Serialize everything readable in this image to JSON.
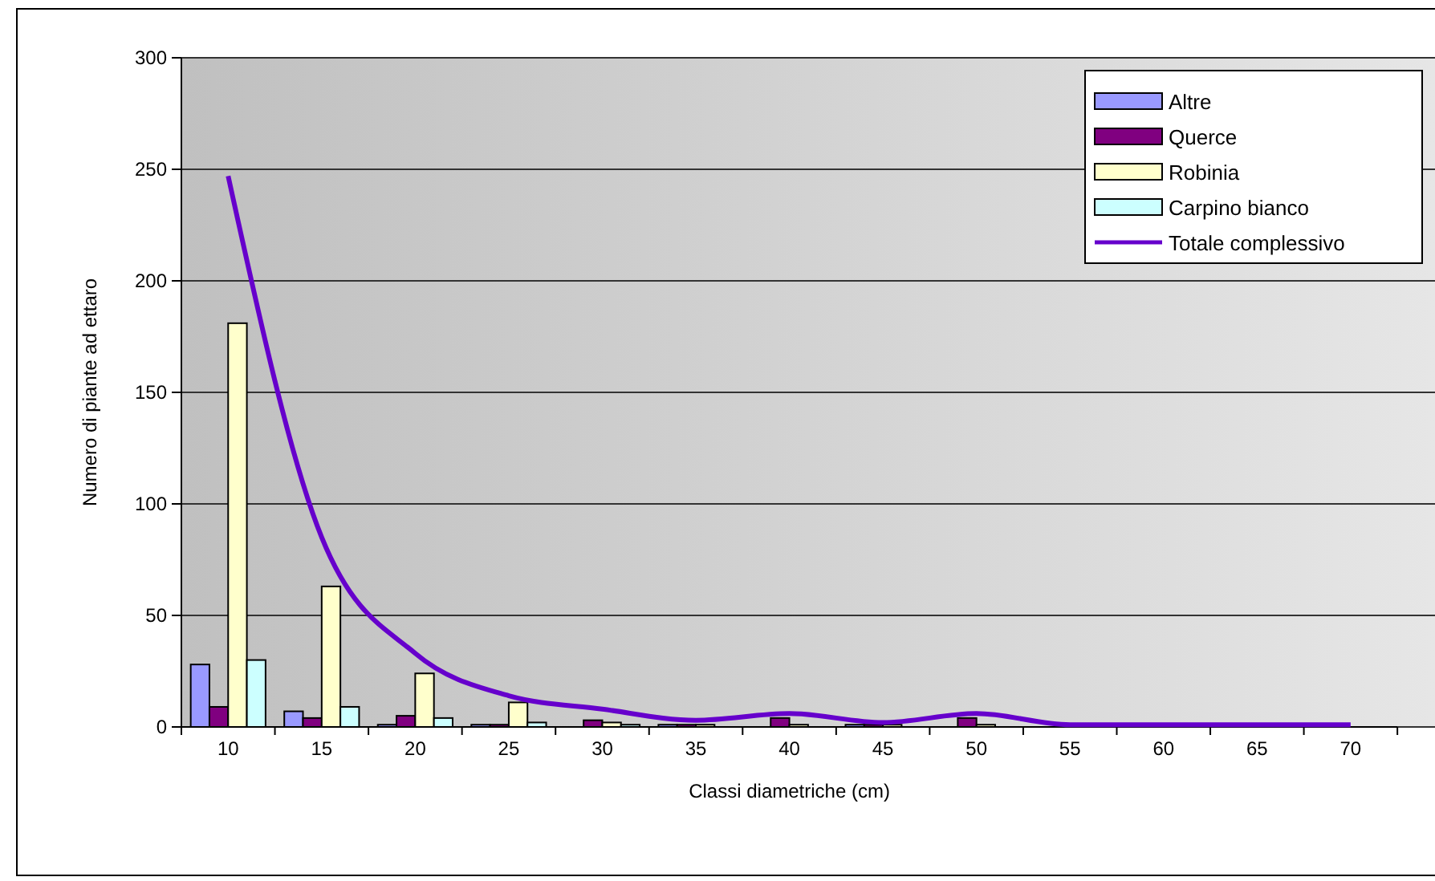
{
  "chart_data": {
    "type": "bar",
    "xlabel": "Classi diametriche (cm)",
    "ylabel": "Numero di piante ad ettaro",
    "categories": [
      "10",
      "15",
      "20",
      "25",
      "30",
      "35",
      "40",
      "45",
      "50",
      "55",
      "60",
      "65",
      "70"
    ],
    "series": [
      {
        "name": "Altre",
        "color": "#9999ff",
        "values": [
          28,
          7,
          1,
          1,
          0,
          1,
          0,
          1,
          0,
          0,
          0,
          0,
          0
        ]
      },
      {
        "name": "Querce",
        "color": "#800080",
        "values": [
          9,
          4,
          5,
          1,
          3,
          1,
          4,
          1,
          4,
          0,
          0,
          0,
          0
        ]
      },
      {
        "name": "Robinia",
        "color": "#ffffcc",
        "values": [
          181,
          63,
          24,
          11,
          2,
          1,
          1,
          1,
          1,
          0,
          0,
          0,
          0
        ]
      },
      {
        "name": "Carpino bianco",
        "color": "#ccffff",
        "values": [
          30,
          9,
          4,
          2,
          1,
          0,
          0,
          0,
          0,
          0,
          0,
          0,
          0
        ]
      },
      {
        "name": "Totale complessivo",
        "type": "line",
        "color": "#6600cc",
        "values": [
          247,
          85,
          33,
          14,
          8,
          3,
          6,
          2,
          6,
          1,
          1,
          1,
          1
        ]
      }
    ],
    "ylim": [
      0,
      300
    ],
    "yticks": [
      0,
      50,
      100,
      150,
      200,
      250,
      300
    ],
    "grid": "y",
    "legend": "top right",
    "marker": "none",
    "line_style": "solid"
  }
}
